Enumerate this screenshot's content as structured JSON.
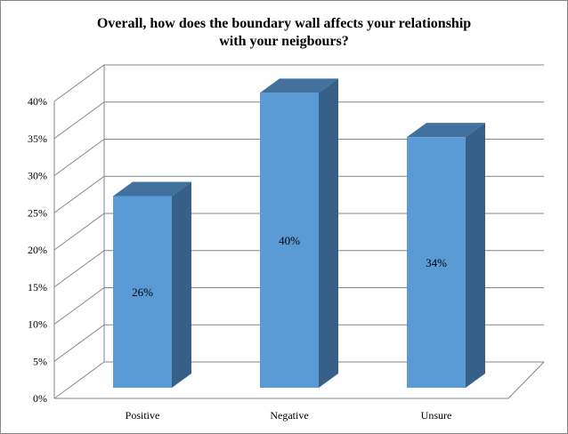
{
  "chart_data": {
    "type": "bar",
    "title_lines": [
      "Overall, how does the boundary  wall affects your relationship",
      "with your neigbours?"
    ],
    "categories": [
      "Positive",
      "Negative",
      "Unsure"
    ],
    "values": [
      26,
      40,
      34
    ],
    "data_labels": [
      "26%",
      "40%",
      "34%"
    ],
    "ylim": [
      0,
      40
    ],
    "yticks": [
      "0%",
      "5%",
      "10%",
      "15%",
      "20%",
      "25%",
      "30%",
      "35%",
      "40%"
    ],
    "grid": true,
    "legend": "none",
    "colors": {
      "front": "#5B9BD5",
      "top": "#41719C",
      "side": "#376088",
      "grid": "#868686"
    }
  }
}
